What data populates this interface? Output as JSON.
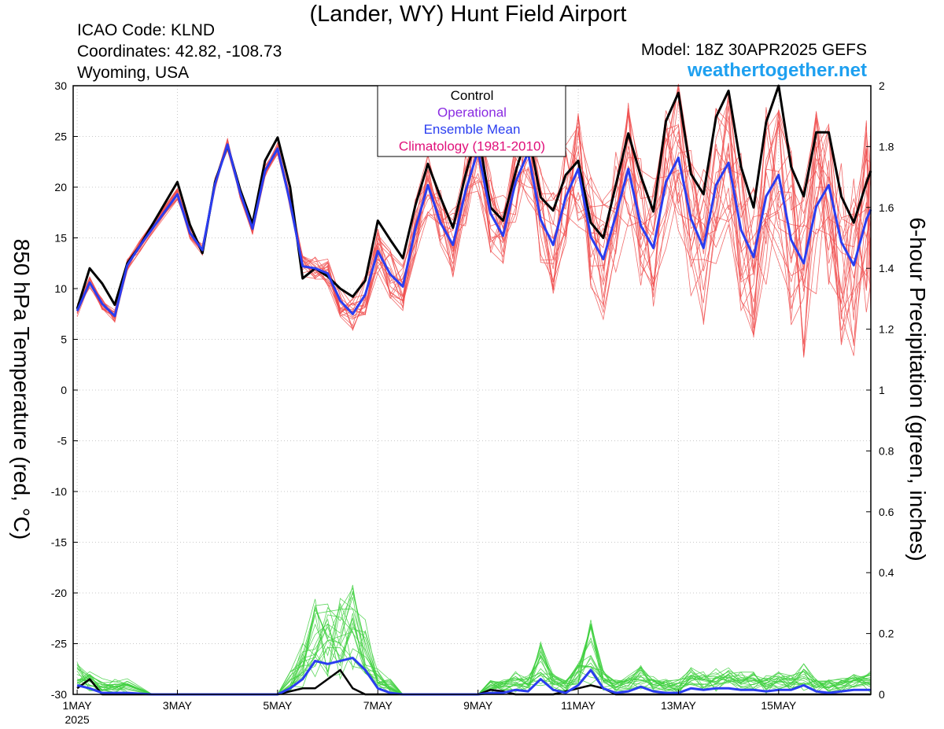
{
  "header": {
    "title": "(Lander, WY) Hunt Field Airport",
    "icao": "ICAO Code: KLND",
    "coordinates": "Coordinates: 42.82, -108.73",
    "region": "Wyoming, USA",
    "model": "Model: 18Z 30APR2025 GEFS",
    "site": "weathertogether.net"
  },
  "colors": {
    "control": "#000000",
    "operational": "#8a2be2",
    "ensemble_mean": "#2a3df0",
    "climatology": "#e0107a",
    "members_temp": "#f05050",
    "members_precip": "#40d040",
    "site": "#1ea0f0"
  },
  "chart_data": {
    "type": "line",
    "xlabel": "",
    "ylabel": "850 hPa Temperature (red, °C)",
    "ylabel_right": "6-hour Precipitation (green, inches)",
    "x_ticks": [
      "1MAY",
      "3MAY",
      "5MAY",
      "7MAY",
      "9MAY",
      "11MAY",
      "13MAY",
      "15MAY"
    ],
    "x_tick_day": [
      1,
      3,
      5,
      7,
      9,
      11,
      13,
      15
    ],
    "x_year_label": "2025",
    "xlim": [
      0.92,
      16.84
    ],
    "ylim": [
      -30,
      30
    ],
    "y_ticks": [
      30,
      25,
      20,
      15,
      10,
      5,
      0,
      -5,
      -10,
      -15,
      -20,
      -25,
      -30
    ],
    "ylim_right": [
      0,
      2
    ],
    "y_ticks_right": [
      2,
      1.8,
      1.6,
      1.4,
      1.2,
      1,
      0.8,
      0.6,
      0.4,
      0.2,
      0
    ],
    "legend": [
      "Control",
      "Operational",
      "Ensemble Mean",
      "Climatology (1981-2010)"
    ],
    "legend_position": "top-center",
    "series": [
      {
        "name": "Control",
        "x": [
          1,
          1.25,
          1.5,
          1.75,
          2,
          2.25,
          3,
          3.25,
          3.5,
          3.75,
          4,
          4.25,
          4.5,
          4.75,
          5,
          5.25,
          5.5,
          5.75,
          6,
          6.25,
          6.5,
          6.75,
          7,
          7.25,
          7.5,
          7.75,
          8,
          8.25,
          8.5,
          8.75,
          9,
          9.25,
          9.5,
          9.75,
          10,
          10.25,
          10.5,
          10.75,
          11,
          11.25,
          11.5,
          11.75,
          12,
          12.25,
          12.5,
          12.75,
          13,
          13.25,
          13.5,
          13.75,
          14,
          14.25,
          14.5,
          14.75,
          15,
          15.25,
          15.5,
          15.75,
          16,
          16.25,
          16.5,
          16.75,
          16.84
        ],
        "values": [
          8,
          12,
          10.5,
          8.4,
          12.5,
          14.2,
          20.5,
          16.3,
          13.5,
          20.5,
          24.1,
          19.8,
          16.4,
          22.6,
          24.9,
          20,
          11,
          12,
          11.2,
          10,
          9.2,
          10.8,
          16.7,
          14.8,
          13,
          18.2,
          22.3,
          19,
          16,
          21.2,
          25.5,
          18,
          16.7,
          21.5,
          25.5,
          19,
          17.7,
          21.2,
          22.6,
          16.5,
          15,
          20.2,
          25.3,
          21.1,
          17.6,
          26.5,
          29.3,
          21.3,
          19.3,
          26.9,
          29.5,
          22,
          18,
          26.4,
          30,
          22,
          19.1,
          25.4,
          25.4,
          19.1,
          16.5,
          20.4,
          21.6
        ]
      },
      {
        "name": "Ensemble Mean",
        "x": [
          1,
          1.25,
          1.5,
          1.75,
          2,
          2.25,
          3,
          3.25,
          3.5,
          3.75,
          4,
          4.25,
          4.5,
          4.75,
          5,
          5.25,
          5.5,
          5.75,
          6,
          6.25,
          6.5,
          6.75,
          7,
          7.25,
          7.5,
          7.75,
          8,
          8.25,
          8.5,
          8.75,
          9,
          9.25,
          9.5,
          9.75,
          10,
          10.25,
          10.5,
          10.75,
          11,
          11.25,
          11.5,
          11.75,
          12,
          12.25,
          12.5,
          12.75,
          13,
          13.25,
          13.5,
          13.75,
          14,
          14.25,
          14.5,
          14.75,
          15,
          15.25,
          15.5,
          15.75,
          16,
          16.25,
          16.5,
          16.75,
          16.84
        ],
        "values": [
          7.8,
          10.6,
          8.5,
          7.3,
          12.3,
          14.2,
          19.3,
          15.5,
          13.8,
          20.3,
          24.2,
          19.5,
          15.9,
          21.6,
          23.8,
          18.5,
          12.2,
          12,
          11.5,
          8.8,
          7.5,
          9.4,
          13.7,
          11.4,
          10.2,
          15.9,
          20.2,
          16.5,
          14.3,
          19.6,
          23.6,
          17.4,
          15.2,
          20.5,
          23.4,
          16.8,
          14.3,
          19,
          21.8,
          15.1,
          12.9,
          17.2,
          21.8,
          16.2,
          14,
          20.5,
          22.9,
          16.9,
          14,
          20.2,
          22.4,
          15.8,
          13.1,
          19.1,
          21.2,
          14.8,
          12.5,
          18.1,
          20.2,
          14.6,
          12.3,
          16.8,
          17.8
        ]
      }
    ],
    "precip_series": [
      {
        "name": "Control",
        "x": [
          1,
          1.25,
          1.5,
          1.75,
          2,
          2.5,
          3,
          3.5,
          4,
          4.5,
          5,
          5.5,
          5.75,
          6,
          6.25,
          6.5,
          6.75,
          7,
          7.5,
          8,
          8.5,
          9,
          9.25,
          9.5,
          9.75,
          10,
          10.5,
          11,
          11.25,
          11.5,
          11.75,
          12,
          12.5,
          13,
          13.5,
          14,
          14.5,
          15,
          15.5,
          16,
          16.5,
          16.84
        ],
        "values": [
          0.02,
          0.05,
          0,
          0,
          0,
          0,
          0,
          0,
          0,
          0,
          0,
          0.02,
          0.02,
          0.05,
          0.08,
          0.02,
          0,
          0,
          0,
          0,
          0,
          0,
          0.015,
          0.01,
          0,
          0,
          0,
          0.02,
          0.03,
          0.02,
          0,
          0,
          0,
          0,
          0,
          0,
          0,
          0,
          0,
          0,
          0,
          0
        ]
      },
      {
        "name": "Ensemble Mean",
        "x": [
          1,
          1.25,
          1.5,
          1.75,
          2,
          2.5,
          3,
          3.5,
          4,
          4.5,
          5,
          5.25,
          5.5,
          5.75,
          6,
          6.25,
          6.5,
          6.75,
          7,
          7.25,
          7.5,
          8,
          8.5,
          9,
          9.25,
          9.5,
          9.75,
          10,
          10.25,
          10.5,
          10.75,
          11,
          11.25,
          11.5,
          11.75,
          12,
          12.25,
          12.5,
          12.75,
          13,
          13.25,
          13.5,
          13.75,
          14,
          14.25,
          14.5,
          14.75,
          15,
          15.25,
          15.5,
          15.75,
          16,
          16.25,
          16.5,
          16.84
        ],
        "values": [
          0.03,
          0.02,
          0.005,
          0.005,
          0.005,
          0,
          0,
          0,
          0,
          0,
          0,
          0.02,
          0.05,
          0.11,
          0.1,
          0.11,
          0.12,
          0.08,
          0.02,
          0.005,
          0,
          0,
          0,
          0,
          0.005,
          0.005,
          0.015,
          0.01,
          0.05,
          0.015,
          0.005,
          0.03,
          0.08,
          0.02,
          0.005,
          0.01,
          0.025,
          0.01,
          0.005,
          0.005,
          0.02,
          0.015,
          0.02,
          0.02,
          0.015,
          0.015,
          0.01,
          0.015,
          0.015,
          0.03,
          0.01,
          0.005,
          0.01,
          0.015,
          0.015
        ]
      }
    ]
  }
}
